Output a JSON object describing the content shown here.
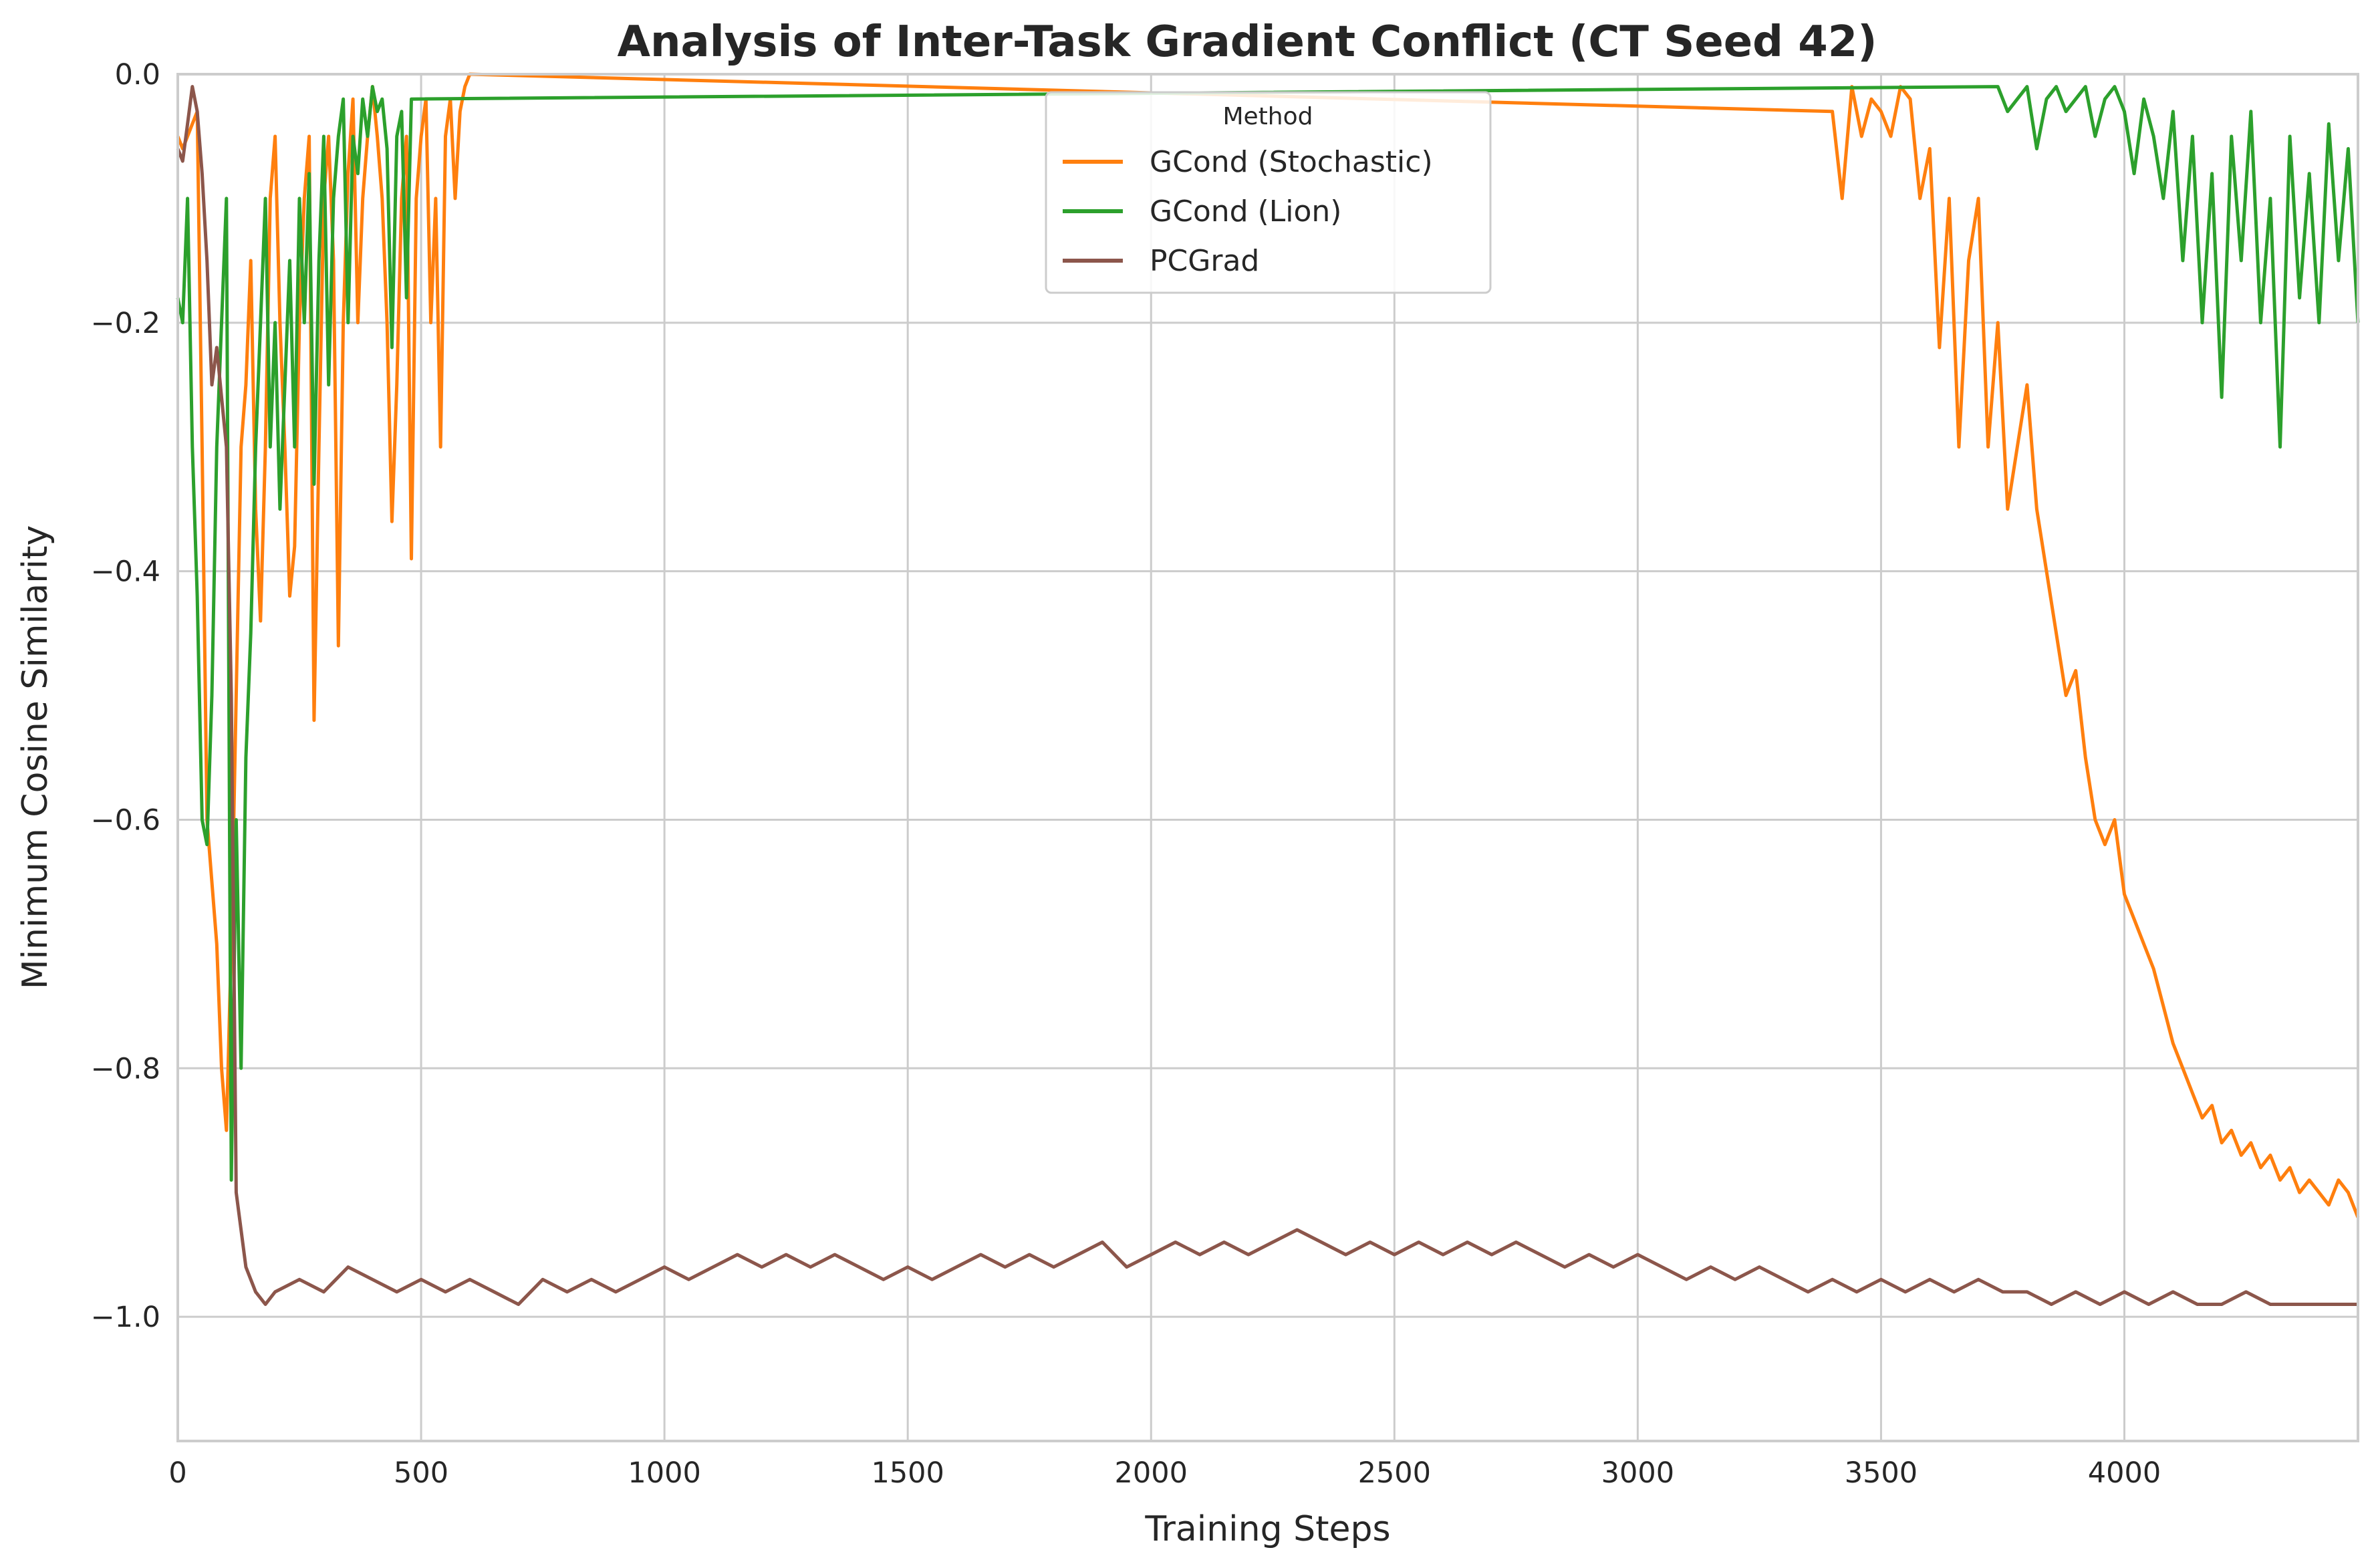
{
  "chart_data": {
    "type": "line",
    "title": "Analysis of Inter-Task Gradient Conflict (CT Seed 42)",
    "xlabel": "Training Steps",
    "ylabel": "Minimum Cosine Similarity",
    "xlim": [
      0,
      4480
    ],
    "ylim": [
      -1.1,
      0.0
    ],
    "xticks": [
      0,
      500,
      1000,
      1500,
      2000,
      2500,
      3000,
      3500,
      4000
    ],
    "yticks": [
      0.0,
      -0.2,
      -0.4,
      -0.6,
      -0.8,
      -1.0
    ],
    "xtick_labels": [
      "0",
      "500",
      "1000",
      "1500",
      "2000",
      "2500",
      "3000",
      "3500",
      "4000"
    ],
    "ytick_labels": [
      "0.0",
      "−0.2",
      "−0.4",
      "−0.6",
      "−0.8",
      "−1.0"
    ],
    "grid": true,
    "legend": {
      "title": "Method",
      "placement": "top-center"
    },
    "series": [
      {
        "name": "GCond (Stochastic)",
        "color": "#ff7f0e",
        "x": [
          0,
          10,
          20,
          30,
          40,
          50,
          60,
          70,
          80,
          90,
          100,
          110,
          120,
          130,
          140,
          150,
          160,
          170,
          180,
          190,
          200,
          210,
          220,
          230,
          240,
          250,
          260,
          270,
          280,
          290,
          300,
          310,
          320,
          330,
          340,
          350,
          360,
          370,
          380,
          390,
          400,
          410,
          420,
          430,
          440,
          450,
          460,
          470,
          480,
          490,
          500,
          510,
          520,
          530,
          540,
          550,
          560,
          570,
          580,
          590,
          600,
          3400,
          3420,
          3440,
          3460,
          3480,
          3500,
          3520,
          3540,
          3560,
          3580,
          3600,
          3620,
          3640,
          3660,
          3680,
          3700,
          3720,
          3740,
          3760,
          3780,
          3800,
          3820,
          3840,
          3860,
          3880,
          3900,
          3920,
          3940,
          3960,
          3980,
          4000,
          4020,
          4040,
          4060,
          4080,
          4100,
          4120,
          4140,
          4160,
          4180,
          4200,
          4220,
          4240,
          4260,
          4280,
          4300,
          4320,
          4340,
          4360,
          4380,
          4400,
          4420,
          4440,
          4460,
          4480
        ],
        "values": [
          -0.05,
          -0.06,
          -0.05,
          -0.04,
          -0.03,
          -0.3,
          -0.6,
          -0.65,
          -0.7,
          -0.8,
          -0.85,
          -0.7,
          -0.5,
          -0.3,
          -0.25,
          -0.15,
          -0.35,
          -0.44,
          -0.3,
          -0.1,
          -0.05,
          -0.2,
          -0.3,
          -0.42,
          -0.38,
          -0.2,
          -0.1,
          -0.05,
          -0.52,
          -0.3,
          -0.1,
          -0.05,
          -0.15,
          -0.46,
          -0.2,
          -0.08,
          -0.02,
          -0.2,
          -0.1,
          -0.05,
          -0.01,
          -0.05,
          -0.1,
          -0.2,
          -0.36,
          -0.25,
          -0.1,
          -0.05,
          -0.39,
          -0.1,
          -0.05,
          -0.02,
          -0.2,
          -0.1,
          -0.3,
          -0.05,
          -0.02,
          -0.1,
          -0.03,
          -0.01,
          0.0,
          -0.03,
          -0.1,
          -0.01,
          -0.05,
          -0.02,
          -0.03,
          -0.05,
          -0.01,
          -0.02,
          -0.1,
          -0.06,
          -0.22,
          -0.1,
          -0.3,
          -0.15,
          -0.1,
          -0.3,
          -0.2,
          -0.35,
          -0.3,
          -0.25,
          -0.35,
          -0.4,
          -0.45,
          -0.5,
          -0.48,
          -0.55,
          -0.6,
          -0.62,
          -0.6,
          -0.66,
          -0.68,
          -0.7,
          -0.72,
          -0.75,
          -0.78,
          -0.8,
          -0.82,
          -0.84,
          -0.83,
          -0.86,
          -0.85,
          -0.87,
          -0.86,
          -0.88,
          -0.87,
          -0.89,
          -0.88,
          -0.9,
          -0.89,
          -0.9,
          -0.91,
          -0.89,
          -0.9,
          -0.92
        ]
      },
      {
        "name": "GCond (Lion)",
        "color": "#2ca02c",
        "x": [
          0,
          10,
          20,
          30,
          40,
          50,
          60,
          70,
          80,
          90,
          100,
          110,
          120,
          130,
          140,
          150,
          160,
          170,
          180,
          190,
          200,
          210,
          220,
          230,
          240,
          250,
          260,
          270,
          280,
          290,
          300,
          310,
          320,
          330,
          340,
          350,
          360,
          370,
          380,
          390,
          400,
          410,
          420,
          430,
          440,
          450,
          460,
          470,
          480,
          3740,
          3760,
          3780,
          3800,
          3820,
          3840,
          3860,
          3880,
          3900,
          3920,
          3940,
          3960,
          3980,
          4000,
          4020,
          4040,
          4060,
          4080,
          4100,
          4120,
          4140,
          4160,
          4180,
          4200,
          4220,
          4240,
          4260,
          4280,
          4300,
          4320,
          4340,
          4360,
          4380,
          4400,
          4420,
          4440,
          4460,
          4480
        ],
        "values": [
          -0.18,
          -0.2,
          -0.1,
          -0.3,
          -0.42,
          -0.6,
          -0.62,
          -0.5,
          -0.3,
          -0.2,
          -0.1,
          -0.89,
          -0.6,
          -0.8,
          -0.55,
          -0.45,
          -0.3,
          -0.2,
          -0.1,
          -0.3,
          -0.2,
          -0.35,
          -0.25,
          -0.15,
          -0.3,
          -0.1,
          -0.2,
          -0.08,
          -0.33,
          -0.15,
          -0.05,
          -0.25,
          -0.1,
          -0.05,
          -0.02,
          -0.2,
          -0.05,
          -0.08,
          -0.02,
          -0.05,
          -0.01,
          -0.03,
          -0.02,
          -0.06,
          -0.22,
          -0.05,
          -0.03,
          -0.18,
          -0.02,
          -0.01,
          -0.03,
          -0.02,
          -0.01,
          -0.06,
          -0.02,
          -0.01,
          -0.03,
          -0.02,
          -0.01,
          -0.05,
          -0.02,
          -0.01,
          -0.03,
          -0.08,
          -0.02,
          -0.05,
          -0.1,
          -0.03,
          -0.15,
          -0.05,
          -0.2,
          -0.08,
          -0.26,
          -0.05,
          -0.15,
          -0.03,
          -0.2,
          -0.1,
          -0.3,
          -0.05,
          -0.18,
          -0.08,
          -0.2,
          -0.04,
          -0.15,
          -0.06,
          -0.2
        ]
      },
      {
        "name": "PCGrad",
        "color": "#8c564b",
        "x": [
          0,
          10,
          20,
          30,
          40,
          50,
          60,
          70,
          80,
          90,
          100,
          110,
          120,
          140,
          160,
          180,
          200,
          250,
          300,
          350,
          400,
          450,
          500,
          550,
          600,
          650,
          700,
          750,
          800,
          850,
          900,
          950,
          1000,
          1050,
          1100,
          1150,
          1200,
          1250,
          1300,
          1350,
          1400,
          1450,
          1500,
          1550,
          1600,
          1650,
          1700,
          1750,
          1800,
          1850,
          1900,
          1950,
          2000,
          2050,
          2100,
          2150,
          2200,
          2250,
          2300,
          2350,
          2400,
          2450,
          2500,
          2550,
          2600,
          2650,
          2700,
          2750,
          2800,
          2850,
          2900,
          2950,
          3000,
          3050,
          3100,
          3150,
          3200,
          3250,
          3300,
          3350,
          3400,
          3450,
          3500,
          3550,
          3600,
          3650,
          3700,
          3750,
          3800,
          3850,
          3900,
          3950,
          4000,
          4050,
          4100,
          4150,
          4200,
          4250,
          4300,
          4350,
          4400,
          4450,
          4480
        ],
        "values": [
          -0.06,
          -0.07,
          -0.04,
          -0.01,
          -0.03,
          -0.08,
          -0.15,
          -0.25,
          -0.22,
          -0.26,
          -0.3,
          -0.5,
          -0.9,
          -0.96,
          -0.98,
          -0.99,
          -0.98,
          -0.97,
          -0.98,
          -0.96,
          -0.97,
          -0.98,
          -0.97,
          -0.98,
          -0.97,
          -0.98,
          -0.99,
          -0.97,
          -0.98,
          -0.97,
          -0.98,
          -0.97,
          -0.96,
          -0.97,
          -0.96,
          -0.95,
          -0.96,
          -0.95,
          -0.96,
          -0.95,
          -0.96,
          -0.97,
          -0.96,
          -0.97,
          -0.96,
          -0.95,
          -0.96,
          -0.95,
          -0.96,
          -0.95,
          -0.94,
          -0.96,
          -0.95,
          -0.94,
          -0.95,
          -0.94,
          -0.95,
          -0.94,
          -0.93,
          -0.94,
          -0.95,
          -0.94,
          -0.95,
          -0.94,
          -0.95,
          -0.94,
          -0.95,
          -0.94,
          -0.95,
          -0.96,
          -0.95,
          -0.96,
          -0.95,
          -0.96,
          -0.97,
          -0.96,
          -0.97,
          -0.96,
          -0.97,
          -0.98,
          -0.97,
          -0.98,
          -0.97,
          -0.98,
          -0.97,
          -0.98,
          -0.97,
          -0.98,
          -0.98,
          -0.99,
          -0.98,
          -0.99,
          -0.98,
          -0.99,
          -0.98,
          -0.99,
          -0.99,
          -0.98,
          -0.99,
          -0.99,
          -0.99,
          -0.99,
          -0.99
        ]
      }
    ]
  }
}
